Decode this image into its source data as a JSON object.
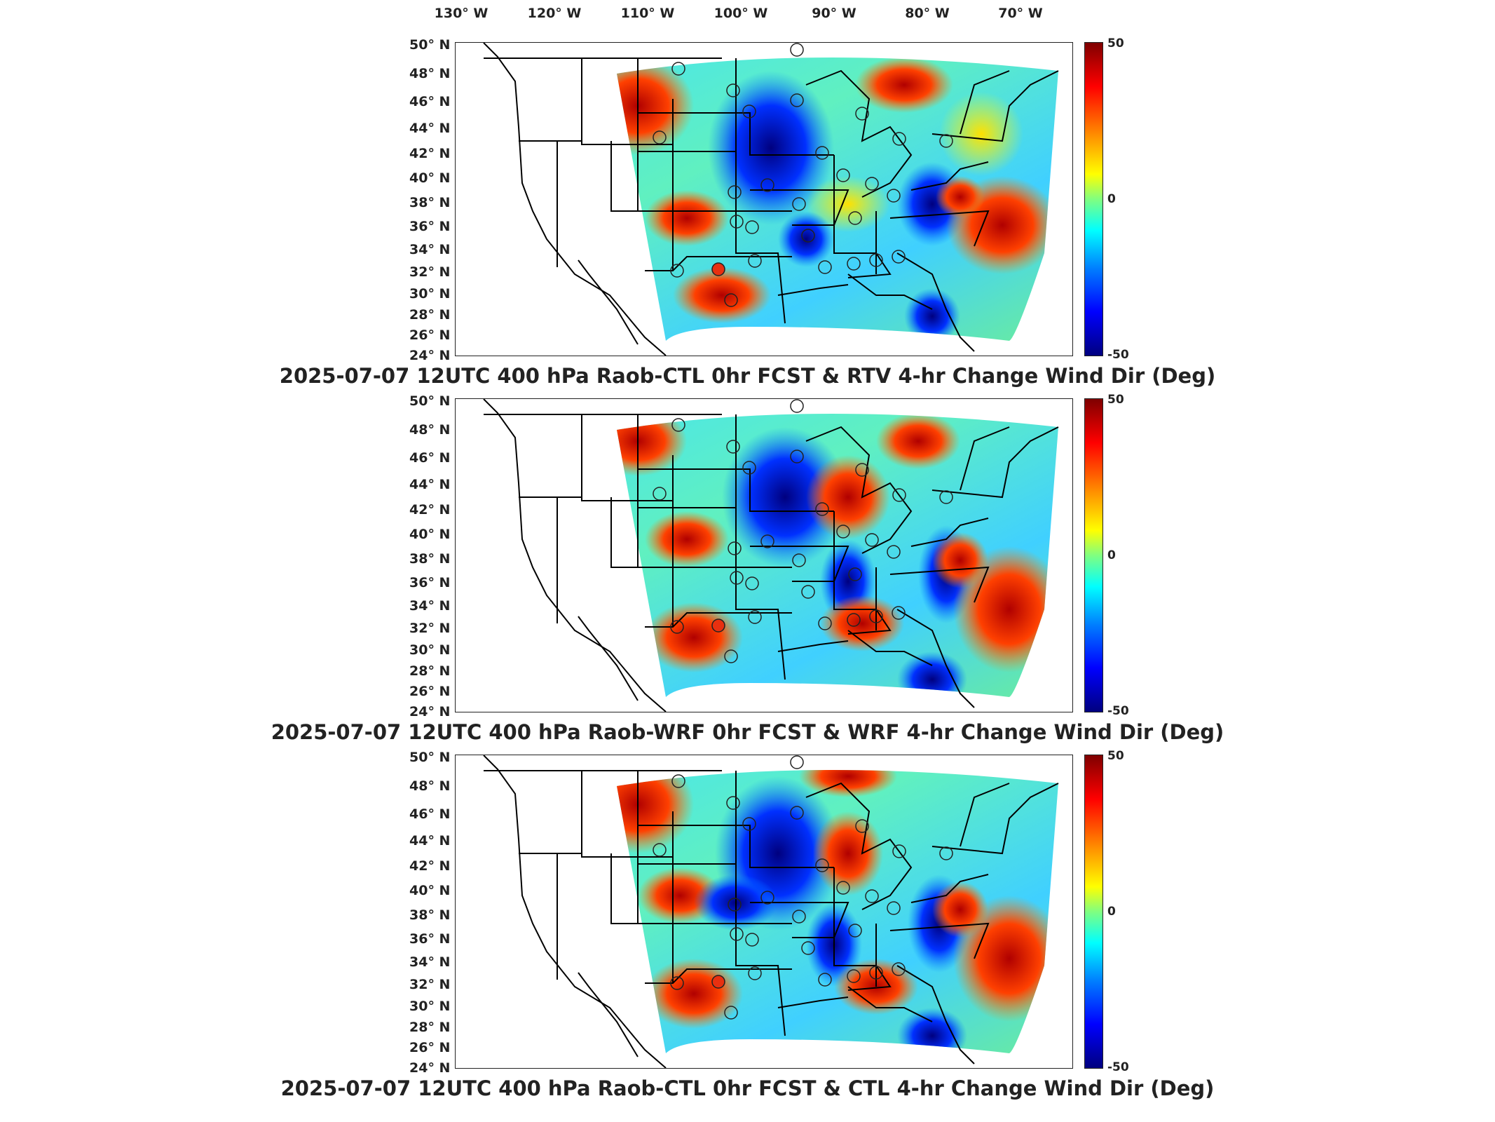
{
  "lon_labels": [
    "130° W",
    "120° W",
    "110° W",
    "100° W",
    "90° W",
    "80° W",
    "70° W"
  ],
  "lat_labels": [
    "50° N",
    "48° N",
    "46° N",
    "44° N",
    "42° N",
    "40° N",
    "38° N",
    "36° N",
    "34° N",
    "32° N",
    "30° N",
    "28° N",
    "26° N",
    "24° N"
  ],
  "colorbar": {
    "max": "50",
    "mid": "0",
    "min": "-50"
  },
  "colors": {
    "high": "#7f0000",
    "zero": "#80ff80",
    "low": "#00007f"
  },
  "panels": [
    {
      "title": "2025-07-07 12UTC 400 hPa Raob-CTL 0hr FCST & RTV 4-hr Change Wind Dir (Deg)"
    },
    {
      "title": "2025-07-07 12UTC 400 hPa Raob-WRF 0hr FCST & WRF 4-hr Change Wind Dir (Deg)"
    },
    {
      "title": "2025-07-07 12UTC 400 hPa Raob-CTL 0hr FCST & CTL 4-hr Change Wind Dir (Deg)"
    }
  ]
}
